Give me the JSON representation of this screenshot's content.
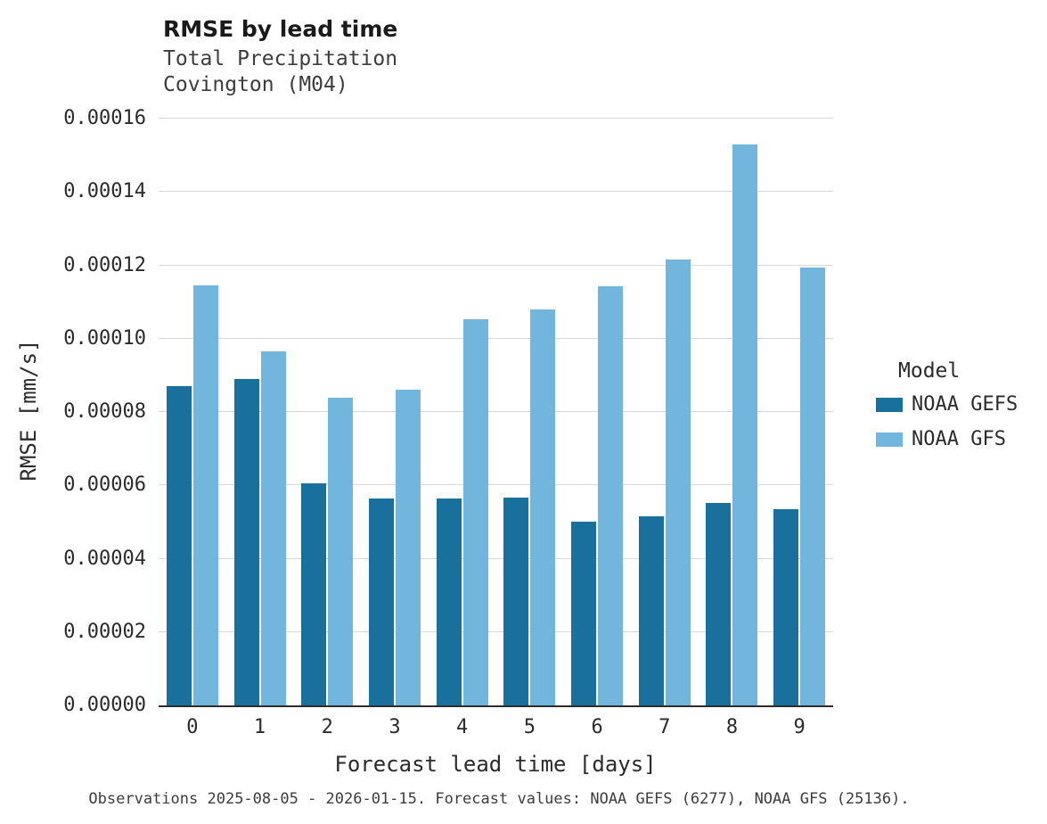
{
  "chart_data": {
    "type": "bar",
    "title": "RMSE by lead time",
    "subtitle_line1": "Total Precipitation",
    "subtitle_line2": "Covington (M04)",
    "xlabel": "Forecast lead time [days]",
    "ylabel": "RMSE [mm/s]",
    "legend_title": "Model",
    "legend_position": "right",
    "grid": "horizontal",
    "categories": [
      "0",
      "1",
      "2",
      "3",
      "4",
      "5",
      "6",
      "7",
      "8",
      "9"
    ],
    "series": [
      {
        "name": "NOAA GEFS",
        "color": "#19709d",
        "values": [
          8.7e-05,
          8.9e-05,
          6.05e-05,
          5.65e-05,
          5.65e-05,
          5.67e-05,
          5.02e-05,
          5.15e-05,
          5.52e-05,
          5.35e-05
        ]
      },
      {
        "name": "NOAA GFS",
        "color": "#72b6de",
        "values": [
          0.0001145,
          9.65e-05,
          8.4e-05,
          8.62e-05,
          0.0001052,
          0.000108,
          0.0001142,
          0.0001215,
          0.000153,
          0.0001195
        ]
      }
    ],
    "ylim": [
      0,
      0.00016
    ],
    "ytick_values": [
      0,
      2e-05,
      4e-05,
      6e-05,
      8e-05,
      0.0001,
      0.00012,
      0.00014,
      0.00016
    ],
    "ytick_labels": [
      "0.00000",
      "0.00002",
      "0.00004",
      "0.00006",
      "0.00008",
      "0.00010",
      "0.00012",
      "0.00014",
      "0.00016"
    ],
    "caption": "Observations 2025-08-05 - 2026-01-15. Forecast values: NOAA GEFS (6277), NOAA GFS (25136)."
  }
}
